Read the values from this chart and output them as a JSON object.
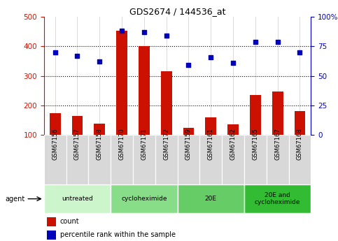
{
  "title": "GDS2674 / 144536_at",
  "samples": [
    "GSM67156",
    "GSM67157",
    "GSM67158",
    "GSM67170",
    "GSM67171",
    "GSM67172",
    "GSM67159",
    "GSM67161",
    "GSM67162",
    "GSM67165",
    "GSM67167",
    "GSM67168"
  ],
  "counts": [
    175,
    165,
    138,
    452,
    402,
    315,
    125,
    160,
    135,
    235,
    248,
    180
  ],
  "percentiles": [
    70,
    67,
    62,
    88,
    87,
    84,
    59,
    66,
    61,
    79,
    79,
    70
  ],
  "groups": [
    {
      "label": "untreated",
      "start": 0,
      "end": 3,
      "color": "#ccf5cc"
    },
    {
      "label": "cycloheximide",
      "start": 3,
      "end": 6,
      "color": "#88dd88"
    },
    {
      "label": "20E",
      "start": 6,
      "end": 9,
      "color": "#66cc66"
    },
    {
      "label": "20E and\ncycloheximide",
      "start": 9,
      "end": 12,
      "color": "#33bb33"
    }
  ],
  "bar_color": "#cc1100",
  "dot_color": "#0000bb",
  "left_axis_color": "#cc1100",
  "right_axis_color": "#0000bb",
  "ylim_left": [
    100,
    500
  ],
  "ylim_right": [
    0,
    100
  ],
  "yticks_left": [
    100,
    200,
    300,
    400,
    500
  ],
  "yticks_right": [
    0,
    25,
    50,
    75,
    100
  ],
  "plot_bg_color": "#ffffff",
  "xtick_bg_color": "#d8d8d8",
  "agent_label": "agent"
}
